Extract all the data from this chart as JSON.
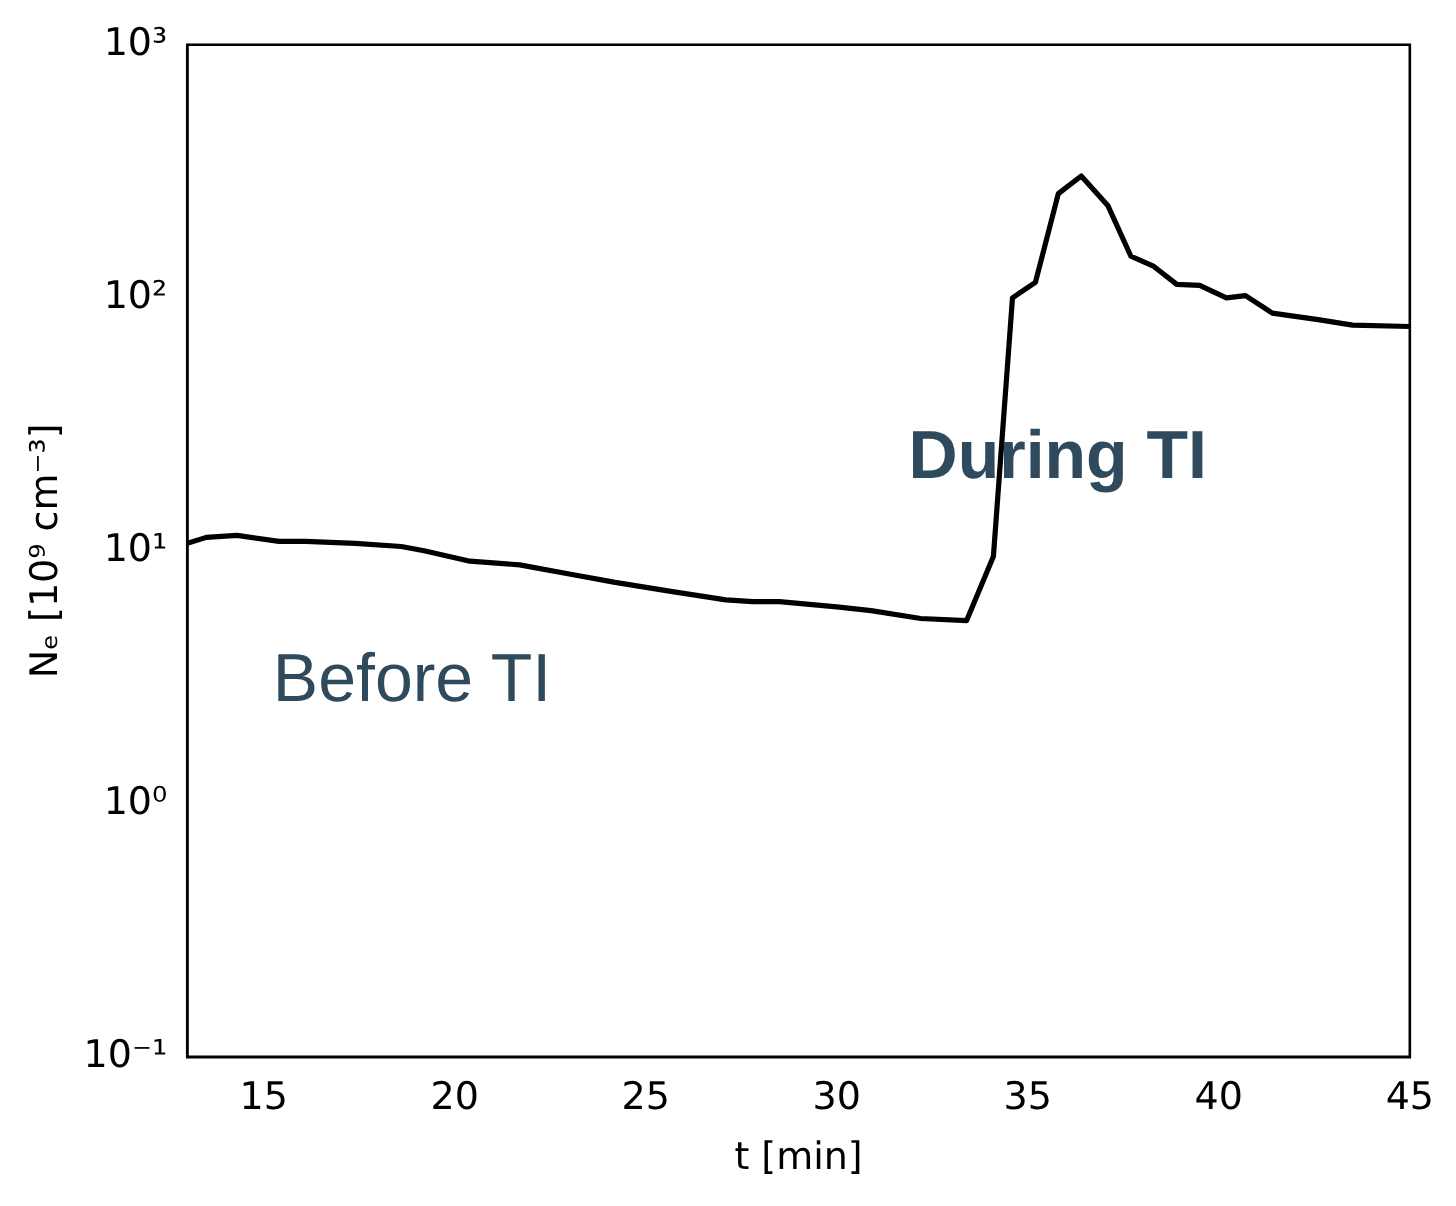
{
  "chart_data": {
    "type": "line",
    "xlabel": "t [min]",
    "ylabel": "Nₑ [10⁹ cm⁻³]",
    "annotations": [
      "Before TI",
      "During TI"
    ],
    "x": [
      13,
      13.5,
      14.3,
      15.4,
      16.1,
      17.4,
      18.6,
      19.2,
      20.4,
      21.7,
      23.0,
      24.2,
      25.7,
      27.1,
      27.8,
      28.5,
      30.0,
      30.9,
      32.2,
      33.4,
      34.1,
      34.6,
      35.2,
      35.8,
      36.4,
      37.1,
      37.7,
      38.3,
      38.9,
      39.5,
      40.2,
      40.7,
      41.4,
      42.6,
      43.5,
      45
    ],
    "series": [
      {
        "color": "#000000",
        "values": [
          10.7,
          11.3,
          11.5,
          10.9,
          10.9,
          10.7,
          10.4,
          10.0,
          9.1,
          8.8,
          8.1,
          7.5,
          6.9,
          6.4,
          6.3,
          6.3,
          6.0,
          5.8,
          5.4,
          5.3,
          9.5,
          100,
          115,
          258,
          303,
          231,
          146,
          133,
          113,
          112,
          100,
          102,
          87,
          82,
          78,
          77
        ]
      }
    ],
    "log": "y",
    "xlim": [
      13,
      45
    ],
    "xticks": [
      15,
      20,
      25,
      30,
      35,
      40,
      45
    ],
    "ylim": [
      0.1,
      1000
    ],
    "yticks": [
      {
        "value": 0.1,
        "label": "10⁻¹"
      },
      {
        "value": 1,
        "label": "10⁰"
      },
      {
        "value": 10,
        "label": "10¹"
      },
      {
        "value": 100,
        "label": "10²"
      },
      {
        "value": 1000,
        "label": "10³"
      }
    ],
    "grid": false,
    "legend": false,
    "marker": "none",
    "line_style": "solid"
  }
}
